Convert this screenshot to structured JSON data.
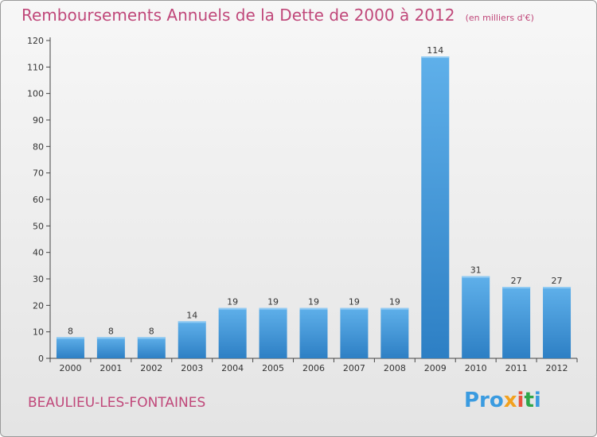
{
  "title": "Remboursements Annuels de la Dette de 2000 à 2012",
  "subtitle": "(en milliers d'€)",
  "commune": "BEAULIEU-LES-FONTAINES",
  "logo": {
    "p1": "Pro",
    "p2": "x",
    "p3": "i",
    "p4": "t",
    "p5": "i"
  },
  "colors": {
    "title": "#c0487a",
    "bar_top": "#5fb0ea",
    "bar_bottom": "#2d7fc4",
    "axis": "#444444"
  },
  "chart_data": {
    "type": "bar",
    "categories": [
      "2000",
      "2001",
      "2002",
      "2003",
      "2004",
      "2005",
      "2006",
      "2007",
      "2008",
      "2009",
      "2010",
      "2011",
      "2012"
    ],
    "values": [
      8,
      8,
      8,
      14,
      19,
      19,
      19,
      19,
      19,
      114,
      31,
      27,
      27
    ],
    "ylim": [
      0,
      120
    ],
    "yticks": [
      0,
      10,
      20,
      30,
      40,
      50,
      60,
      70,
      80,
      90,
      100,
      110,
      120
    ],
    "grid": false,
    "legend": "none"
  }
}
